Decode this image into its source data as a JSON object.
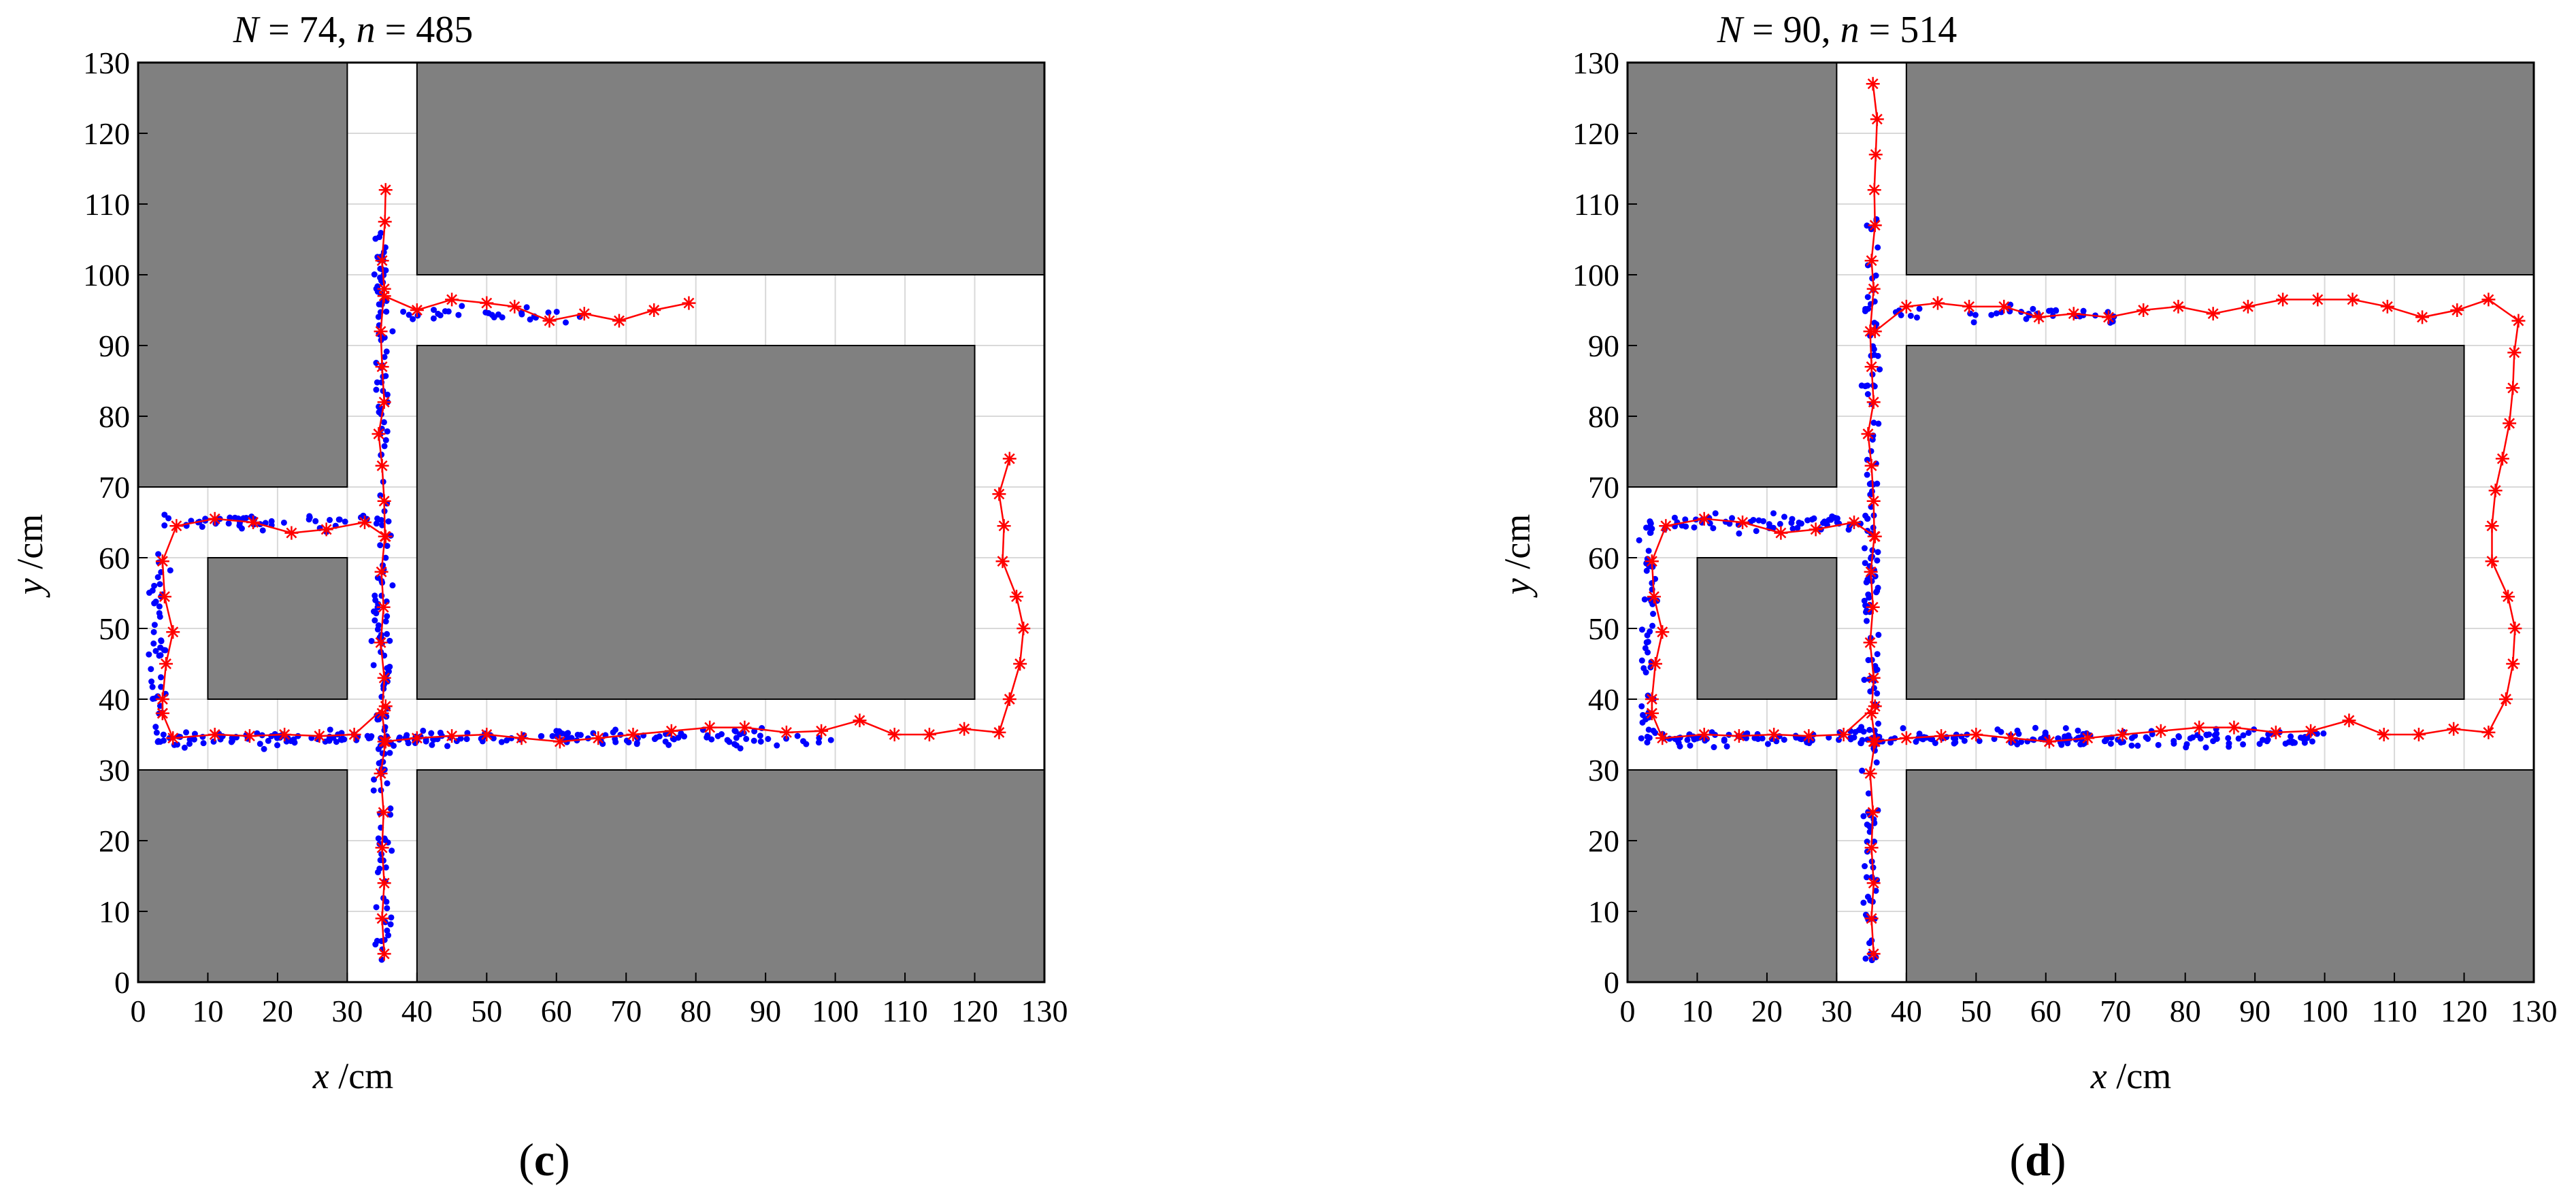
{
  "figure": {
    "panels": [
      {
        "id": "c",
        "label_prefix": "(",
        "label": "c",
        "label_suffix": ")",
        "title": {
          "v1": "N",
          "eq1": " = 74, ",
          "v2": "n",
          "eq2": " = 485"
        }
      },
      {
        "id": "d",
        "label_prefix": "(",
        "label": "d",
        "label_suffix": ")",
        "title": {
          "v1": "N",
          "eq1": " = 90, ",
          "v2": "n",
          "eq2": " = 514"
        }
      }
    ],
    "xlabel": {
      "var": "x",
      "unit": " /cm"
    },
    "ylabel": {
      "var": "y",
      "unit": " /cm"
    }
  },
  "chart_data": [
    {
      "type": "scatter",
      "title": "N = 74, n = 485",
      "xlabel": "x /cm",
      "ylabel": "y /cm",
      "xlim": [
        0,
        130
      ],
      "ylim": [
        0,
        130
      ],
      "xticks": [
        0,
        10,
        20,
        30,
        40,
        50,
        60,
        70,
        80,
        90,
        100,
        110,
        120,
        130
      ],
      "yticks": [
        0,
        10,
        20,
        30,
        40,
        50,
        60,
        70,
        80,
        90,
        100,
        110,
        120,
        130
      ],
      "grid": true,
      "colors": {
        "obstacle": "#808080",
        "points": "#0000ff",
        "path": "#ff0000",
        "grid": "#d9d9d9"
      },
      "obstacles": [
        {
          "x0": 0,
          "y0": 70,
          "x1": 30,
          "y1": 130
        },
        {
          "x0": 40,
          "y0": 100,
          "x1": 130,
          "y1": 130
        },
        {
          "x0": 10,
          "y0": 40,
          "x1": 30,
          "y1": 60
        },
        {
          "x0": 40,
          "y0": 40,
          "x1": 120,
          "y1": 90
        },
        {
          "x0": 0,
          "y0": 0,
          "x1": 30,
          "y1": 30
        },
        {
          "x0": 40,
          "y0": 0,
          "x1": 130,
          "y1": 30
        }
      ],
      "series": [
        {
          "markers": "star",
          "points": [
            [
              35.3,
              4
            ],
            [
              35,
              9
            ],
            [
              35.3,
              14
            ],
            [
              35,
              19
            ],
            [
              35.2,
              24
            ],
            [
              34.8,
              29.5
            ],
            [
              35.5,
              34
            ],
            [
              35,
              38
            ],
            [
              35.3,
              43
            ],
            [
              34.8,
              48
            ],
            [
              35.2,
              53
            ],
            [
              34.9,
              58
            ],
            [
              35.4,
              63
            ],
            [
              35.3,
              68
            ],
            [
              35,
              73
            ],
            [
              34.5,
              77.5
            ],
            [
              35.3,
              82
            ],
            [
              35,
              87
            ],
            [
              34.8,
              92
            ],
            [
              35.3,
              98
            ],
            [
              35,
              102
            ],
            [
              35.4,
              107.5
            ],
            [
              35.5,
              112
            ]
          ]
        },
        {
          "markers": "star",
          "points": [
            [
              3.5,
              38
            ],
            [
              3.5,
              40
            ],
            [
              4,
              45
            ],
            [
              5,
              49.5
            ],
            [
              3.8,
              54.5
            ],
            [
              3.5,
              59.5
            ],
            [
              5.5,
              64.5
            ],
            [
              11,
              65.5
            ],
            [
              16.5,
              65
            ],
            [
              22,
              63.5
            ],
            [
              27,
              64
            ],
            [
              32.5,
              65
            ],
            [
              35.5,
              63
            ]
          ]
        },
        {
          "markers": "star",
          "points": [
            [
              35.5,
              39
            ],
            [
              31,
              35
            ],
            [
              26,
              34.8
            ],
            [
              21,
              35
            ],
            [
              16,
              34.8
            ],
            [
              11,
              35
            ],
            [
              5,
              34.5
            ],
            [
              3.5,
              38
            ]
          ]
        },
        {
          "markers": "star",
          "points": [
            [
              35.3,
              34
            ],
            [
              40,
              34.5
            ],
            [
              45,
              34.8
            ],
            [
              50,
              35
            ],
            [
              55,
              34.5
            ],
            [
              60.5,
              34
            ],
            [
              66,
              34.5
            ],
            [
              71,
              35
            ],
            [
              76.5,
              35.5
            ],
            [
              82,
              36
            ],
            [
              87,
              36
            ],
            [
              93,
              35.3
            ],
            [
              98,
              35.5
            ],
            [
              103.5,
              37
            ],
            [
              108.5,
              35
            ],
            [
              113.5,
              35
            ],
            [
              118.5,
              35.8
            ],
            [
              123.5,
              35.3
            ],
            [
              125,
              40
            ],
            [
              126.5,
              45
            ],
            [
              127,
              50
            ],
            [
              126,
              54.5
            ],
            [
              124,
              59.5
            ],
            [
              124.2,
              64.5
            ],
            [
              123.5,
              69
            ],
            [
              125,
              74
            ]
          ]
        },
        {
          "markers": "star",
          "points": [
            [
              35.3,
              97
            ],
            [
              40,
              95
            ],
            [
              45,
              96.5
            ],
            [
              50,
              96
            ],
            [
              54,
              95.5
            ],
            [
              59,
              93.5
            ],
            [
              64,
              94.5
            ],
            [
              69,
              93.5
            ],
            [
              74,
              95
            ],
            [
              79,
              96
            ]
          ]
        },
        {
          "name": "",
          "markers": "dot",
          "random_cloud": 485,
          "seed": 7
        }
      ]
    },
    {
      "type": "scatter",
      "title": "N = 90, n = 514",
      "xlabel": "x /cm",
      "ylabel": "y /cm",
      "xlim": [
        0,
        130
      ],
      "ylim": [
        0,
        130
      ],
      "xticks": [
        0,
        10,
        20,
        30,
        40,
        50,
        60,
        70,
        80,
        90,
        100,
        110,
        120,
        130
      ],
      "yticks": [
        0,
        10,
        20,
        30,
        40,
        50,
        60,
        70,
        80,
        90,
        100,
        110,
        120,
        130
      ],
      "grid": true,
      "colors": {
        "obstacle": "#808080",
        "points": "#0000ff",
        "path": "#ff0000",
        "grid": "#d9d9d9"
      },
      "obstacles": [
        {
          "x0": 0,
          "y0": 70,
          "x1": 30,
          "y1": 130
        },
        {
          "x0": 40,
          "y0": 100,
          "x1": 130,
          "y1": 130
        },
        {
          "x0": 10,
          "y0": 40,
          "x1": 30,
          "y1": 60
        },
        {
          "x0": 40,
          "y0": 40,
          "x1": 120,
          "y1": 90
        },
        {
          "x0": 0,
          "y0": 0,
          "x1": 30,
          "y1": 30
        },
        {
          "x0": 40,
          "y0": 0,
          "x1": 130,
          "y1": 30
        }
      ],
      "series": [
        {
          "markers": "star",
          "points": [
            [
              35.3,
              4
            ],
            [
              35,
              9
            ],
            [
              35.3,
              14
            ],
            [
              35,
              19
            ],
            [
              35.2,
              24
            ],
            [
              34.8,
              29.5
            ],
            [
              35.5,
              34
            ],
            [
              35,
              38
            ],
            [
              35.3,
              43
            ],
            [
              34.8,
              48
            ],
            [
              35.2,
              53
            ],
            [
              34.9,
              58
            ],
            [
              35.4,
              63
            ],
            [
              35.3,
              68
            ],
            [
              35,
              73
            ],
            [
              34.5,
              77.5
            ],
            [
              35.3,
              82
            ],
            [
              35,
              87
            ],
            [
              34.8,
              92
            ],
            [
              35.3,
              98
            ],
            [
              35,
              102
            ],
            [
              35.5,
              107
            ],
            [
              35.4,
              112
            ],
            [
              35.6,
              117
            ],
            [
              35.8,
              122
            ],
            [
              35.2,
              127
            ]
          ]
        },
        {
          "markers": "star",
          "points": [
            [
              3.5,
              38
            ],
            [
              3.5,
              40
            ],
            [
              4,
              45
            ],
            [
              5,
              49.5
            ],
            [
              3.8,
              54.5
            ],
            [
              3.5,
              59.5
            ],
            [
              5.5,
              64.5
            ],
            [
              11,
              65.5
            ],
            [
              16.5,
              65
            ],
            [
              22,
              63.5
            ],
            [
              27,
              64
            ],
            [
              32.5,
              65
            ],
            [
              35.5,
              63
            ]
          ]
        },
        {
          "markers": "star",
          "points": [
            [
              35.5,
              39
            ],
            [
              31,
              35
            ],
            [
              26,
              34.8
            ],
            [
              21,
              35
            ],
            [
              16,
              34.8
            ],
            [
              11,
              35
            ],
            [
              5,
              34.5
            ],
            [
              3.5,
              38
            ]
          ]
        },
        {
          "markers": "star",
          "points": [
            [
              35.3,
              34
            ],
            [
              40,
              34.5
            ],
            [
              45,
              34.8
            ],
            [
              50,
              35
            ],
            [
              55,
              34.5
            ],
            [
              60.5,
              34
            ],
            [
              66,
              34.5
            ],
            [
              71,
              35
            ],
            [
              76.5,
              35.5
            ],
            [
              82,
              36
            ],
            [
              87,
              36
            ],
            [
              93,
              35.3
            ],
            [
              98,
              35.5
            ],
            [
              103.5,
              37
            ],
            [
              108.5,
              35
            ],
            [
              113.5,
              35
            ],
            [
              118.5,
              35.8
            ],
            [
              123.5,
              35.3
            ],
            [
              126,
              40
            ],
            [
              127,
              45
            ],
            [
              127.3,
              50
            ],
            [
              126.3,
              54.5
            ],
            [
              124,
              59.5
            ],
            [
              124,
              64.5
            ],
            [
              124.5,
              69.5
            ],
            [
              125.5,
              74
            ],
            [
              126.5,
              79
            ],
            [
              127,
              84
            ],
            [
              127.2,
              89
            ],
            [
              127.8,
              93.5
            ],
            [
              123.5,
              96.5
            ],
            [
              119,
              95
            ],
            [
              114,
              94
            ],
            [
              109,
              95.5
            ],
            [
              104,
              96.5
            ],
            [
              99,
              96.5
            ],
            [
              94,
              96.5
            ],
            [
              89,
              95.5
            ],
            [
              84,
              94.5
            ],
            [
              79,
              95.5
            ],
            [
              74,
              95
            ],
            [
              69,
              94
            ],
            [
              64,
              94.5
            ],
            [
              59,
              94
            ],
            [
              54,
              95.5
            ],
            [
              49,
              95.5
            ],
            [
              44.5,
              96
            ],
            [
              40,
              95.5
            ],
            [
              35.5,
              92
            ]
          ]
        },
        {
          "name": "",
          "markers": "dot",
          "random_cloud": 514,
          "seed": 13
        }
      ]
    }
  ]
}
